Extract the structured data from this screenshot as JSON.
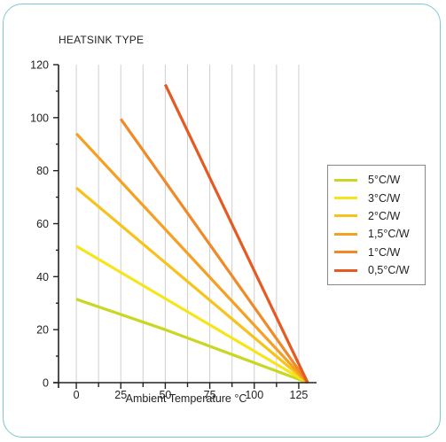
{
  "chart_data": {
    "type": "line",
    "title": "HEATSINK TYPE",
    "xlabel": "Ambient Temperature °C",
    "ylabel": "",
    "xlim": [
      -10,
      135
    ],
    "ylim": [
      0,
      120
    ],
    "x_ticks": [
      0,
      25,
      50,
      75,
      100,
      125
    ],
    "y_ticks": [
      0,
      20,
      40,
      60,
      80,
      100,
      120
    ],
    "grid": "vertical",
    "legend_position": "right",
    "series": [
      {
        "name": "5°C/W",
        "color": "#c9d722",
        "x": [
          0,
          50,
          130
        ],
        "y": [
          31.5,
          20,
          0
        ]
      },
      {
        "name": "3°C/W",
        "color": "#f7e51c",
        "x": [
          0,
          130
        ],
        "y": [
          51.5,
          0
        ]
      },
      {
        "name": "2°C/W",
        "color": "#f7c21a",
        "x": [
          0,
          130
        ],
        "y": [
          73.5,
          0
        ]
      },
      {
        "name": "1,5°C/W",
        "color": "#f5a023",
        "x": [
          0,
          130
        ],
        "y": [
          94,
          0
        ]
      },
      {
        "name": "1°C/W",
        "color": "#f08a28",
        "x": [
          25,
          130
        ],
        "y": [
          99.5,
          0
        ]
      },
      {
        "name": "0,5°C/W",
        "color": "#e45a22",
        "x": [
          50,
          130
        ],
        "y": [
          112.5,
          0
        ]
      }
    ]
  }
}
